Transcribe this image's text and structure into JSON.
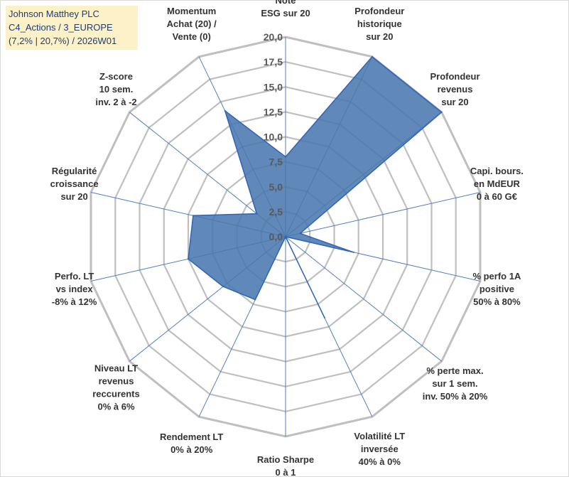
{
  "info_box": {
    "line1": "Johnson Matthey PLC",
    "line2": "C4_Actions / 3_EUROPE",
    "line3": "(7,2% | 20,7%) / 2026W01"
  },
  "colors": {
    "fill": "#4a78ae",
    "stroke": "#2f63b7",
    "grid": "#bfbfbf",
    "spoke": "#4f81bd",
    "info_bg": "#fdf1c7",
    "info_text": "#1f3d73"
  },
  "chart_data": {
    "type": "radar",
    "title": "",
    "rmin": 0,
    "rmax": 20,
    "ticks": [
      "0,0",
      "2,5",
      "5,0",
      "7,5",
      "10,0",
      "12,5",
      "15,0",
      "17,5",
      "20,0"
    ],
    "axes": [
      {
        "label": [
          "Note",
          "ESG sur 20"
        ],
        "value": 8.0
      },
      {
        "label": [
          "Profondeur",
          "historique",
          "sur 20"
        ],
        "value": 20.0
      },
      {
        "label": [
          "Profondeur",
          "revenus",
          "sur 20"
        ],
        "value": 20.0
      },
      {
        "label": [
          "Capi. bours.",
          "en MdEUR",
          "0 à 60 G€"
        ],
        "value": 1.5
      },
      {
        "label": [
          "% perfo 1A",
          "positive",
          "50% à 80%"
        ],
        "value": 7.0
      },
      {
        "label": [
          "% perte max.",
          "sur 1 sem.",
          "inv. 50% à 20%"
        ],
        "value": 0.0
      },
      {
        "label": [
          "Volatilité LT",
          "inversée",
          "40% à 0%"
        ],
        "value": 9.0
      },
      {
        "label": [
          "Ratio Sharpe",
          "0 à 1"
        ],
        "value": 0.0
      },
      {
        "label": [
          "Rendement LT",
          "0% à 20%"
        ],
        "value": 7.0
      },
      {
        "label": [
          "Niveau LT",
          "revenus",
          "reccurents",
          "0% à 6%"
        ],
        "value": 8.0
      },
      {
        "label": [
          "Perfo. LT",
          "vs index",
          "-8% à 12%"
        ],
        "value": 10.0
      },
      {
        "label": [
          "Régularité",
          "croissance",
          "sur 20"
        ],
        "value": 9.5
      },
      {
        "label": [
          "Z-score",
          "10 sem.",
          "inv. 2 à -2"
        ],
        "value": 3.7
      },
      {
        "label": [
          "Momentum",
          "Achat (20) /",
          "Vente (0)"
        ],
        "value": 14.0
      }
    ]
  }
}
